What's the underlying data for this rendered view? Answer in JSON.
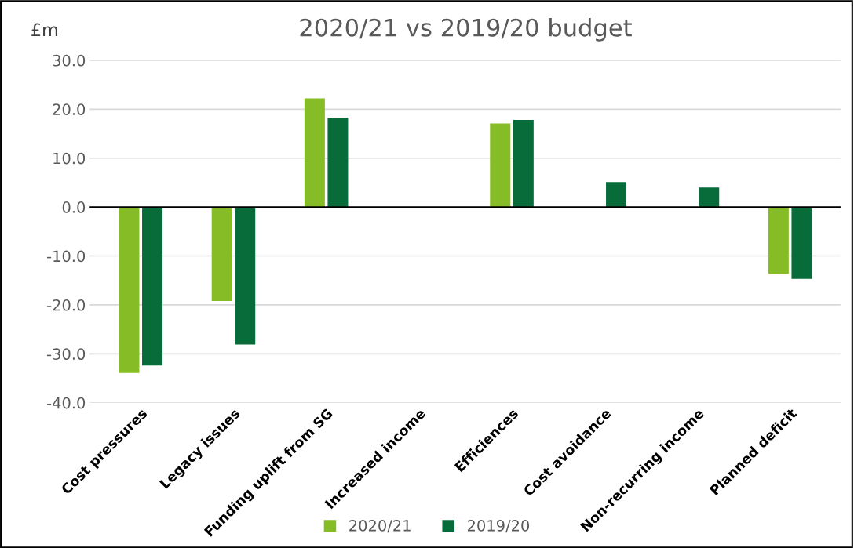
{
  "chart_data": {
    "type": "bar",
    "title": "2020/21 vs 2019/20 budget",
    "ylabel": "£m",
    "categories": [
      "Cost pressures",
      "Legacy issues",
      "Funding uplift from SG",
      "Increased income",
      "Efficiences",
      "Cost avoidance",
      "Non-recurring income",
      "Planned deficit"
    ],
    "series": [
      {
        "name": "2020/21",
        "color": "#86bc25",
        "values": [
          -33.9,
          -19.2,
          22.2,
          null,
          17.1,
          null,
          null,
          -13.6
        ]
      },
      {
        "name": "2019/20",
        "color": "#076c39",
        "values": [
          -32.4,
          -28.1,
          18.3,
          null,
          17.8,
          5.1,
          4.0,
          -14.7
        ]
      }
    ],
    "ylim": [
      -40,
      30
    ],
    "yticks": [
      {
        "value": -40,
        "label": "-40.0"
      },
      {
        "value": -30,
        "label": "-30.0"
      },
      {
        "value": -20,
        "label": "-20.0"
      },
      {
        "value": -10,
        "label": "-10.0"
      },
      {
        "value": 0,
        "label": "0.0"
      },
      {
        "value": 10,
        "label": "10.0"
      },
      {
        "value": 20,
        "label": "20.0"
      },
      {
        "value": 30,
        "label": "30.0"
      }
    ],
    "grid": "y",
    "legend": "bottom"
  }
}
